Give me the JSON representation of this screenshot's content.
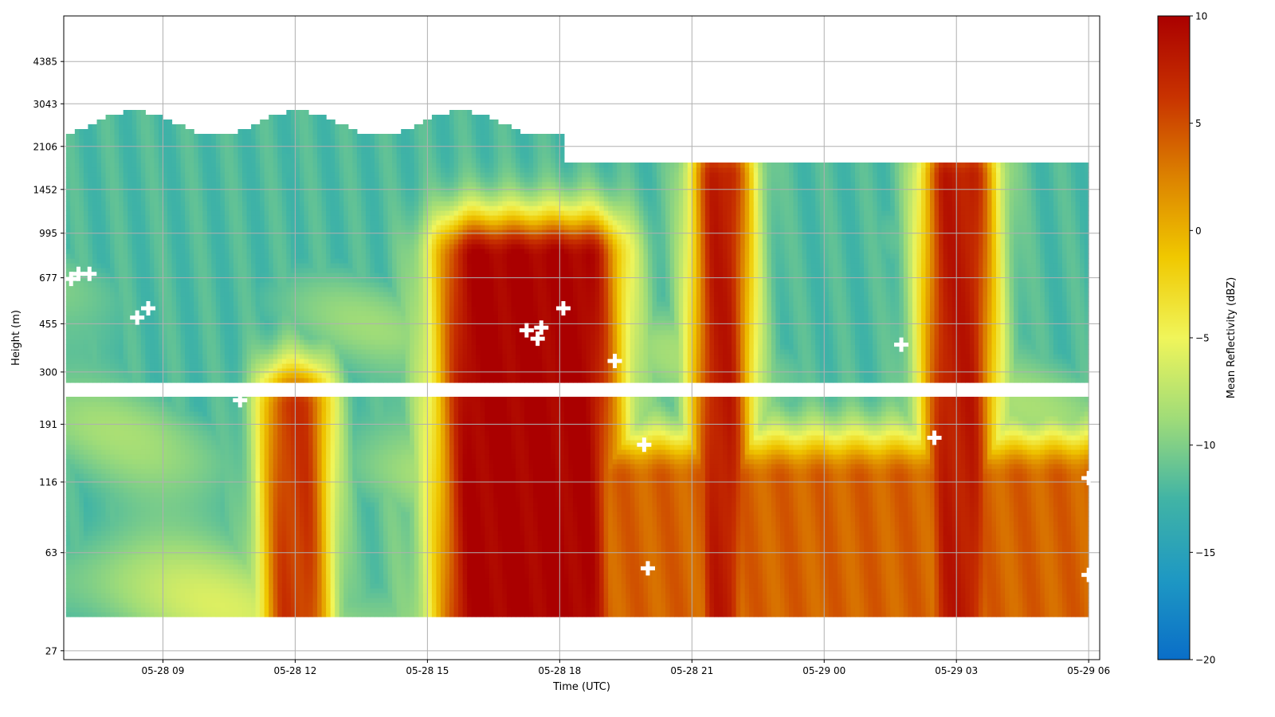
{
  "chart_data": {
    "type": "heatmap",
    "xlabel": "Time (UTC)",
    "ylabel": "Height (m)",
    "x_ticks": [
      "05-28 09",
      "05-28 12",
      "05-28 15",
      "05-28 18",
      "05-28 21",
      "05-29 00",
      "05-29 03",
      "05-29 06"
    ],
    "x_range": [
      "05-28 06:45",
      "05-29 06:15"
    ],
    "y_scale": "log",
    "y_ticks": [
      27,
      63,
      116,
      191,
      300,
      455,
      677,
      995,
      1452,
      2106,
      3043,
      4385
    ],
    "y_range": [
      25,
      6500
    ],
    "grid": true,
    "colorbar": {
      "label": "Mean Reflectivity (dBZ)",
      "ticks": [
        -20,
        -15,
        -10,
        -5,
        0,
        5,
        10
      ],
      "range": [
        -20,
        10
      ],
      "colormap": [
        "#0a6ec8",
        "#1e98c3",
        "#41b4a5",
        "#a0dc78",
        "#f0f55a",
        "#f0c800",
        "#dc8200",
        "#c83200",
        "#aa0000"
      ]
    },
    "data_coverage": {
      "lower_band_m": [
        36,
        240
      ],
      "gap_m": [
        240,
        270
      ],
      "upper_band_m": [
        270,
        "cloud top"
      ],
      "echo_top_before_18_m": [
        2300,
        2850
      ],
      "echo_top_after_18_m": 1840
    },
    "reflectivity_features": [
      {
        "time": "05-28 16:00-18:30",
        "height_m": [
          36,
          800
        ],
        "dbz": 10
      },
      {
        "time": "05-28 11:45-12:10",
        "height_m": [
          36,
          220
        ],
        "dbz": 6
      },
      {
        "time": "05-28 21:30-21:45",
        "height_m": [
          36,
          1600
        ],
        "dbz": 8
      },
      {
        "time": "05-29 02:45-03:15",
        "height_m": [
          36,
          1600
        ],
        "dbz": 8
      },
      {
        "time": "05-28 18:00-05-29 06:00",
        "height_m": [
          36,
          120
        ],
        "dbz": 4
      }
    ],
    "markers": [
      {
        "time": "05-28 06:55",
        "height_m": 670
      },
      {
        "time": "05-28 07:05",
        "height_m": 700
      },
      {
        "time": "05-28 07:20",
        "height_m": 700
      },
      {
        "time": "05-28 08:25",
        "height_m": 480
      },
      {
        "time": "05-28 08:40",
        "height_m": 520
      },
      {
        "time": "05-28 10:45",
        "height_m": 235
      },
      {
        "time": "05-28 17:15",
        "height_m": 430
      },
      {
        "time": "05-28 17:30",
        "height_m": 400
      },
      {
        "time": "05-28 17:35",
        "height_m": 440
      },
      {
        "time": "05-28 18:05",
        "height_m": 520
      },
      {
        "time": "05-28 19:15",
        "height_m": 330
      },
      {
        "time": "05-28 19:55",
        "height_m": 160
      },
      {
        "time": "05-28 20:00",
        "height_m": 55
      },
      {
        "time": "05-29 01:45",
        "height_m": 380
      },
      {
        "time": "05-29 02:30",
        "height_m": 170
      },
      {
        "time": "05-29 06:00",
        "height_m": 120
      },
      {
        "time": "05-29 06:00",
        "height_m": 52
      }
    ]
  }
}
